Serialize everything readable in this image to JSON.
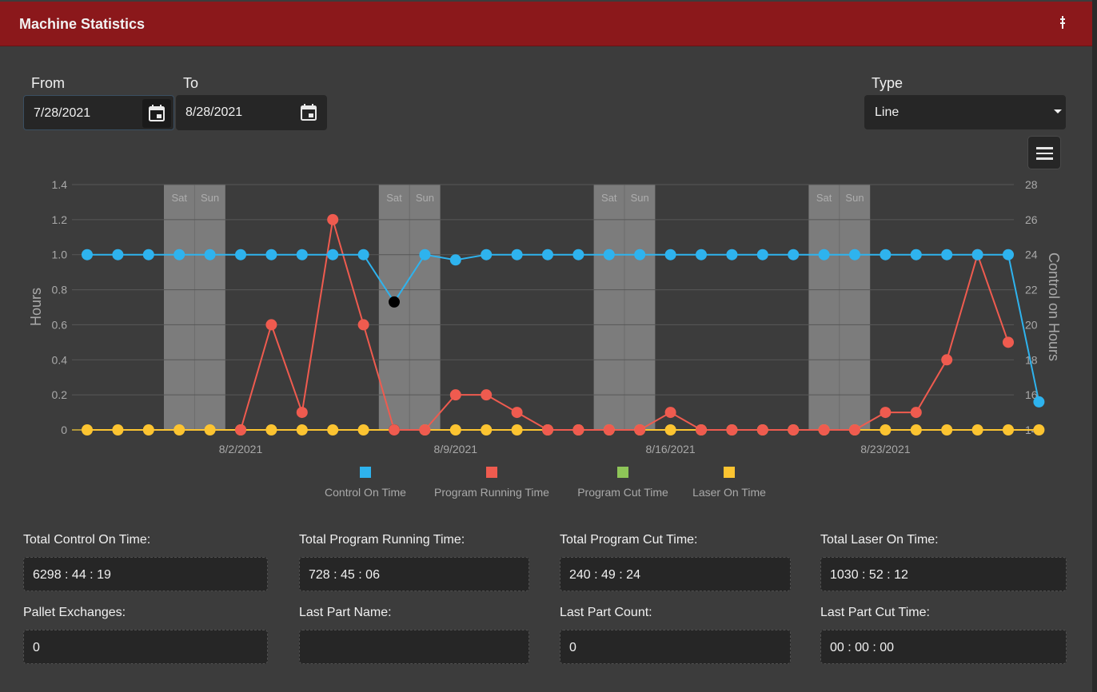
{
  "header": {
    "title": "Machine Statistics"
  },
  "filters": {
    "from_label": "From",
    "from_value": "7/28/2021",
    "to_label": "To",
    "to_value": "8/28/2021",
    "type_label": "Type",
    "type_value": "Line"
  },
  "chart_data": {
    "type": "line",
    "y_left": {
      "label": "Hours",
      "ticks": [
        "1.4",
        "1.2",
        "1.0",
        "0.8",
        "0.6",
        "0.4",
        "0.2",
        "0"
      ],
      "range": [
        0,
        1.4
      ]
    },
    "y_right": {
      "label": "Control on Hours",
      "ticks": [
        "28",
        "26",
        "24",
        "22",
        "20",
        "18",
        "16",
        "14"
      ],
      "range": [
        14,
        28
      ]
    },
    "x_labels": [
      {
        "day": 5,
        "text": "8/2/2021"
      },
      {
        "day": 12,
        "text": "8/9/2021"
      },
      {
        "day": 19,
        "text": "8/16/2021"
      },
      {
        "day": 26,
        "text": "8/23/2021"
      }
    ],
    "weekend_bands": [
      {
        "sat": 3,
        "sat_label": "Sat",
        "sun_label": "Sun"
      },
      {
        "sat": 10,
        "sat_label": "Sat",
        "sun_label": "Sun"
      },
      {
        "sat": 17,
        "sat_label": "Sat",
        "sun_label": "Sun"
      },
      {
        "sat": 24,
        "sat_label": "Sat",
        "sun_label": "Sun"
      }
    ],
    "days": [
      0,
      1,
      2,
      3,
      4,
      5,
      6,
      7,
      8,
      9,
      10,
      11,
      12,
      13,
      14,
      15,
      16,
      17,
      18,
      19,
      20,
      21,
      22,
      23,
      24,
      25,
      26,
      27,
      28,
      29,
      30,
      31
    ],
    "series": [
      {
        "name": "Control On Time",
        "color": "#2eb3ee",
        "axis": "right",
        "values": [
          24,
          24,
          24,
          24,
          24,
          24,
          24,
          24,
          24,
          24,
          21.3,
          24,
          23.7,
          24,
          24,
          24,
          24,
          24,
          24,
          24,
          24,
          24,
          24,
          24,
          24,
          24,
          24,
          24,
          24,
          24,
          24,
          15.6
        ]
      },
      {
        "name": "Program Running Time",
        "color": "#ef5b4f",
        "axis": "left",
        "values": [
          null,
          null,
          null,
          null,
          null,
          0,
          0.6,
          0.1,
          1.2,
          0.6,
          0,
          0,
          0.2,
          0.2,
          0.1,
          0,
          0,
          0,
          0,
          0.1,
          0,
          0,
          0,
          0,
          0,
          0,
          0.1,
          0.1,
          0.4,
          1.0,
          0.5,
          null
        ]
      },
      {
        "name": "Program Cut Time",
        "color": "#8ec558",
        "axis": "left",
        "values": []
      },
      {
        "name": "Laser On Time",
        "color": "#fcc431",
        "axis": "left",
        "values": [
          0,
          0,
          0,
          0,
          0,
          0,
          0,
          0,
          0,
          0,
          0,
          0,
          0,
          0,
          0,
          0,
          0,
          0,
          0,
          0,
          0,
          0,
          0,
          0,
          0,
          0,
          0,
          0,
          0,
          0,
          0,
          0
        ]
      }
    ],
    "highlight_day": 10
  },
  "legend": [
    {
      "name": "Control On Time",
      "color": "#2eb3ee"
    },
    {
      "name": "Program Running Time",
      "color": "#ef5b4f"
    },
    {
      "name": "Program Cut Time",
      "color": "#8ec558"
    },
    {
      "name": "Laser On Time",
      "color": "#fcc431"
    }
  ],
  "stats": {
    "total_control_label": "Total Control On Time:",
    "total_control_value": "6298 : 44 : 19",
    "total_program_running_label": "Total Program Running Time:",
    "total_program_running_value": "728 : 45 : 06",
    "total_program_cut_label": "Total Program Cut Time:",
    "total_program_cut_value": "240 : 49 : 24",
    "total_laser_label": "Total Laser On Time:",
    "total_laser_value": "1030 : 52 : 12",
    "pallet_label": "Pallet Exchanges:",
    "pallet_value": "0",
    "last_part_name_label": "Last Part Name:",
    "last_part_name_value": "",
    "last_part_count_label": "Last Part Count:",
    "last_part_count_value": "0",
    "last_part_cut_label": "Last Part Cut Time:",
    "last_part_cut_value": "00 : 00 : 00"
  },
  "icons": {
    "pin": "pin-icon",
    "calendar": "calendar-icon",
    "menu": "hamburger-menu-icon",
    "dropdown": "caret-down-icon"
  }
}
